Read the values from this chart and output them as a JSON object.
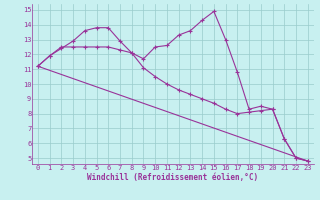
{
  "xlabel": "Windchill (Refroidissement éolien,°C)",
  "bg_color": "#c8f0f0",
  "line_color": "#993399",
  "grid_color": "#99cccc",
  "x_ticks": [
    0,
    1,
    2,
    3,
    4,
    5,
    6,
    7,
    8,
    9,
    10,
    11,
    12,
    13,
    14,
    15,
    16,
    17,
    18,
    19,
    20,
    21,
    22,
    23
  ],
  "y_ticks": [
    5,
    6,
    7,
    8,
    9,
    10,
    11,
    12,
    13,
    14,
    15
  ],
  "ylim": [
    4.6,
    15.4
  ],
  "xlim": [
    -0.5,
    23.5
  ],
  "line1_x": [
    0,
    1,
    2,
    3,
    4,
    5,
    6,
    7,
    8,
    9,
    10,
    11,
    12,
    13,
    14,
    15,
    16,
    17,
    18,
    19,
    20,
    21,
    22,
    23
  ],
  "line1_y": [
    11.2,
    11.9,
    12.4,
    12.9,
    13.6,
    13.8,
    13.8,
    12.9,
    12.1,
    11.1,
    10.5,
    10.0,
    9.6,
    9.3,
    9.0,
    8.7,
    8.3,
    8.0,
    8.1,
    8.2,
    8.3,
    6.3,
    5.0,
    4.8
  ],
  "line2_x": [
    0,
    1,
    2,
    3,
    4,
    5,
    6,
    7,
    8,
    9,
    10,
    11,
    12,
    13,
    14,
    15,
    16,
    17,
    18,
    19,
    20,
    21,
    22,
    23
  ],
  "line2_y": [
    11.2,
    11.9,
    12.5,
    12.5,
    12.5,
    12.5,
    12.5,
    12.3,
    12.1,
    11.7,
    12.5,
    12.6,
    13.3,
    13.6,
    14.3,
    14.9,
    13.0,
    10.8,
    8.3,
    8.5,
    8.3,
    6.3,
    5.0,
    4.8
  ],
  "line3_x": [
    0,
    23
  ],
  "line3_y": [
    11.2,
    4.8
  ],
  "tick_fontsize": 5.0,
  "xlabel_fontsize": 5.5
}
